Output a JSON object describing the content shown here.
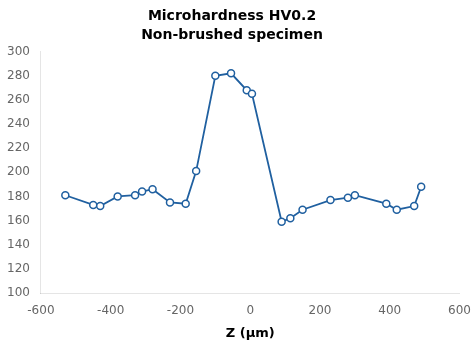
{
  "chart_data": {
    "type": "line",
    "title": "Microhardness HV0.2",
    "subtitle": "Non-brushed specimen",
    "xlabel": "Z (μm)",
    "x": [
      -530,
      -450,
      -430,
      -380,
      -330,
      -310,
      -280,
      -230,
      -185,
      -155,
      -100,
      -55,
      -10,
      5,
      90,
      115,
      150,
      230,
      280,
      300,
      390,
      420,
      470,
      490
    ],
    "values": [
      181,
      173,
      172,
      180,
      181,
      184,
      186,
      175,
      174,
      201,
      280,
      282,
      268,
      265,
      159,
      162,
      169,
      177,
      179,
      181,
      174,
      169,
      172,
      188
    ],
    "color": "#2060a0",
    "marker": "circle",
    "xlim": [
      -600,
      600
    ],
    "ylim": [
      100,
      300
    ],
    "xticks": [
      -600,
      -400,
      -200,
      0,
      200,
      400,
      600
    ],
    "yticks": [
      100,
      120,
      140,
      160,
      180,
      200,
      220,
      240,
      260,
      280,
      300
    ],
    "grid": false
  }
}
